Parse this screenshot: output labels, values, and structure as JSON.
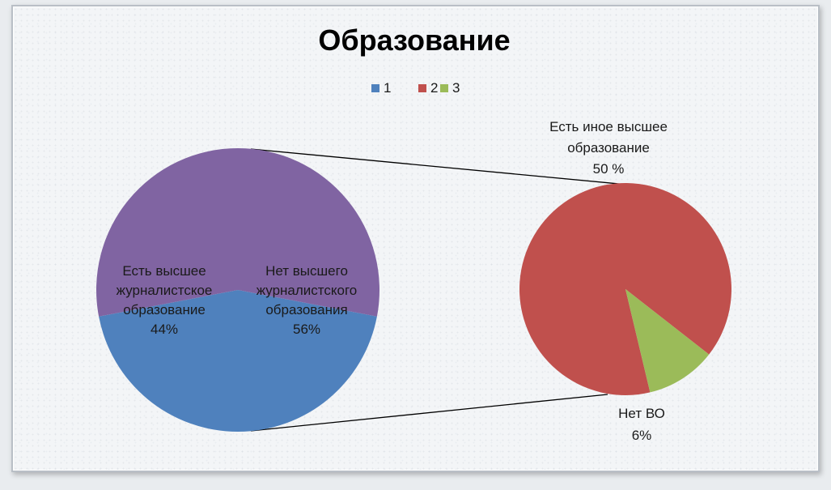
{
  "chart_data": {
    "type": "pie",
    "subtype": "pie-of-pie",
    "title": "Образование",
    "legend": {
      "placement": "top",
      "entries": [
        {
          "label": "1",
          "color": "#4f81bd"
        },
        {
          "label": "2",
          "color": "#c0504d"
        },
        {
          "label": "3",
          "color": "#9bbb59"
        }
      ]
    },
    "main_pie": {
      "slices": [
        {
          "label": "Есть высшее журналистское образование",
          "value_label": "44%",
          "value": 44,
          "color": "#4f81bd"
        },
        {
          "label": "Нет высшего журналистского образования",
          "value_label": "56%",
          "value": 56,
          "color": "#8064a2"
        }
      ]
    },
    "secondary_pie": {
      "slices": [
        {
          "label": "Есть иное  высшее образование",
          "value_label": "50 %",
          "value": 50,
          "color": "#c0504d"
        },
        {
          "label": "Нет ВО",
          "value_label": "6%",
          "value": 6,
          "color": "#9bbb59"
        }
      ]
    },
    "text": {
      "main_left_lines": [
        "Есть высшее",
        "журналистское",
        "образование",
        "44%"
      ],
      "main_right_lines": [
        "Нет высшего",
        "журналистского",
        "образования",
        "56%"
      ],
      "sec_top_lines": [
        "Есть иное  высшее",
        "образование",
        "50 %"
      ],
      "sec_bottom_lines": [
        "Нет ВО",
        "6%"
      ]
    }
  }
}
